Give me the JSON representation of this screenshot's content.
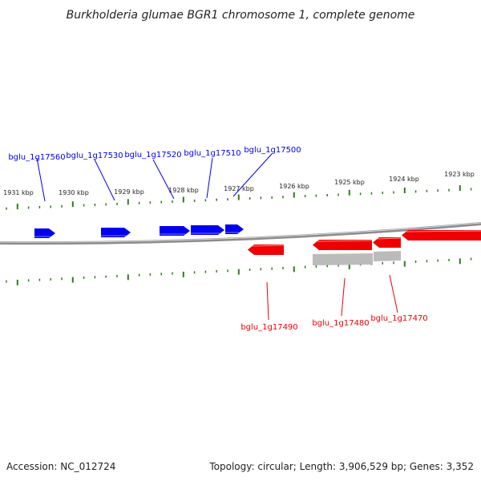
{
  "title": "Burkholderia glumae BGR1 chromosome 1, complete genome",
  "footer": {
    "accession": "Accession: NC_012724",
    "summary": "Topology: circular; Length: 3,906,529 bp; Genes: 3,352"
  },
  "colors": {
    "forward": "#0000ee",
    "reverse": "#ee0000",
    "pseudo": "#bbbbbb",
    "tick": "#2e7d1e",
    "backbone": "#8c8c8c"
  },
  "ticks": {
    "labels": [
      "1931 kbp",
      "1930 kbp",
      "1929 kbp",
      "1928 kbp",
      "1927 kbp",
      "1926 kbp",
      "1925 kbp",
      "1924 kbp",
      "1923 kbp"
    ]
  },
  "genes": {
    "forward": [
      {
        "label": "bglu_1g17560"
      },
      {
        "label": "bglu_1g17530"
      },
      {
        "label": "bglu_1g17520"
      },
      {
        "label": "bglu_1g17510"
      },
      {
        "label": "bglu_1g17500"
      }
    ],
    "reverse": [
      {
        "label": "bglu_1g17490"
      },
      {
        "label": "bglu_1g17480"
      },
      {
        "label": "bglu_1g17470"
      }
    ]
  }
}
